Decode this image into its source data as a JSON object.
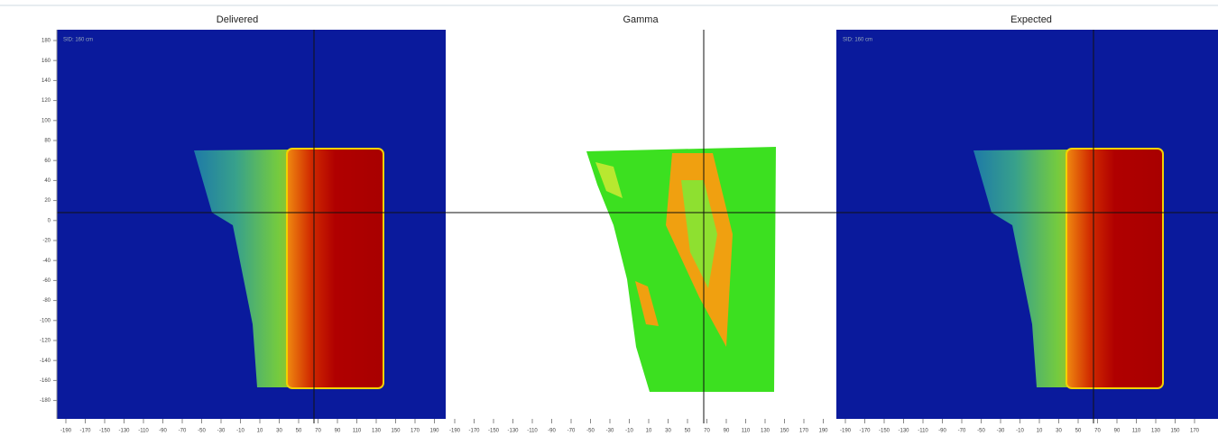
{
  "panels": [
    {
      "title": "Delivered",
      "label": "SID: 160 cm"
    },
    {
      "title": "Gamma"
    },
    {
      "title": "Expected",
      "label": "SID: 160 cm"
    }
  ],
  "y_axis": {
    "ticks": [
      180,
      160,
      140,
      120,
      100,
      80,
      60,
      40,
      20,
      0,
      -20,
      -40,
      -60,
      -80,
      -100,
      -120,
      -140,
      -160,
      -180
    ]
  },
  "x_axis": {
    "ticks": [
      -190,
      -170,
      -150,
      -130,
      -110,
      -90,
      -70,
      -50,
      -30,
      -10,
      10,
      30,
      50,
      70,
      90,
      110,
      130,
      150,
      170,
      190
    ]
  }
}
